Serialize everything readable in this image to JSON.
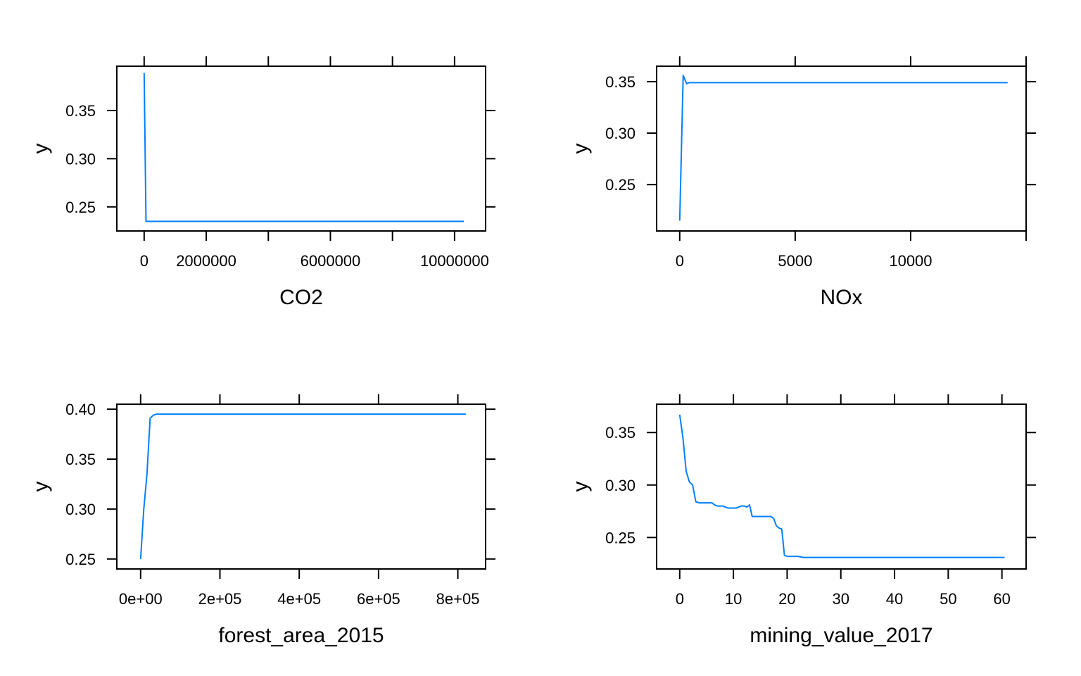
{
  "chart_data": [
    {
      "type": "line",
      "xlabel": "CO2",
      "ylabel": "y",
      "xlim": [
        -880000,
        11000000
      ],
      "ylim": [
        0.225,
        0.396
      ],
      "xticks": [
        0,
        2000000,
        4000000,
        6000000,
        8000000,
        10000000
      ],
      "xtick_labels": [
        "0",
        "2000000",
        "",
        "6000000",
        "",
        "10000000"
      ],
      "yticks": [
        0.25,
        0.3,
        0.35
      ],
      "ytick_labels": [
        "0.25",
        "0.30",
        "0.35"
      ],
      "line_color": "#0080ff",
      "series": [
        {
          "x": [
            0,
            60000,
            600000,
            10300000
          ],
          "y": [
            0.389,
            0.235,
            0.235,
            0.235
          ]
        }
      ]
    },
    {
      "type": "line",
      "xlabel": "NOx",
      "ylabel": "y",
      "xlim": [
        -1000,
        15000
      ],
      "ylim": [
        0.205,
        0.365
      ],
      "xticks": [
        0,
        5000,
        10000,
        15000
      ],
      "xtick_labels": [
        "0",
        "5000",
        "10000",
        ""
      ],
      "yticks": [
        0.25,
        0.3,
        0.35
      ],
      "ytick_labels": [
        "0.25",
        "0.30",
        "0.35"
      ],
      "line_color": "#0080ff",
      "series": [
        {
          "x": [
            0,
            150,
            300,
            400,
            1000,
            14200
          ],
          "y": [
            0.215,
            0.356,
            0.348,
            0.349,
            0.349,
            0.349
          ]
        }
      ]
    },
    {
      "type": "line",
      "xlabel": "forest_area_2015",
      "ylabel": "y",
      "xlim": [
        -60000,
        870000
      ],
      "ylim": [
        0.24,
        0.405
      ],
      "xticks": [
        0,
        200000,
        400000,
        600000,
        800000
      ],
      "xtick_labels": [
        "0e+00",
        "2e+05",
        "4e+05",
        "6e+05",
        "8e+05"
      ],
      "yticks": [
        0.25,
        0.3,
        0.35,
        0.4
      ],
      "ytick_labels": [
        "0.25",
        "0.30",
        "0.35",
        "0.40"
      ],
      "line_color": "#0080ff",
      "series": [
        {
          "x": [
            0,
            8000,
            16000,
            24000,
            32000,
            40000,
            60000,
            820000
          ],
          "y": [
            0.25,
            0.3,
            0.335,
            0.391,
            0.394,
            0.395,
            0.395,
            0.395
          ]
        }
      ]
    },
    {
      "type": "line",
      "xlabel": "mining_value_2017",
      "ylabel": "y",
      "xlim": [
        -4.3,
        64.5
      ],
      "ylim": [
        0.22,
        0.377
      ],
      "xticks": [
        0,
        10,
        20,
        30,
        40,
        50,
        60
      ],
      "xtick_labels": [
        "0",
        "10",
        "20",
        "30",
        "40",
        "50",
        "60"
      ],
      "yticks": [
        0.25,
        0.3,
        0.35
      ],
      "ytick_labels": [
        "0.25",
        "0.30",
        "0.35"
      ],
      "line_color": "#0080ff",
      "series": [
        {
          "x": [
            0,
            0.6,
            1.2,
            1.8,
            2.4,
            3.0,
            3.6,
            4.2,
            5,
            6,
            6.5,
            7,
            8,
            8.5,
            9,
            10,
            10.5,
            11,
            11.5,
            12,
            12.5,
            13,
            13.5,
            14,
            15,
            16,
            17,
            17.5,
            18,
            18.5,
            19,
            19.5,
            20,
            21,
            22,
            23,
            25,
            30,
            40,
            50,
            60.5
          ],
          "y": [
            0.367,
            0.345,
            0.313,
            0.303,
            0.3,
            0.284,
            0.283,
            0.283,
            0.283,
            0.283,
            0.281,
            0.28,
            0.28,
            0.279,
            0.278,
            0.278,
            0.278,
            0.279,
            0.28,
            0.28,
            0.279,
            0.281,
            0.27,
            0.27,
            0.27,
            0.27,
            0.27,
            0.268,
            0.261,
            0.259,
            0.258,
            0.233,
            0.232,
            0.232,
            0.232,
            0.231,
            0.231,
            0.231,
            0.231,
            0.231,
            0.231
          ]
        }
      ]
    }
  ]
}
